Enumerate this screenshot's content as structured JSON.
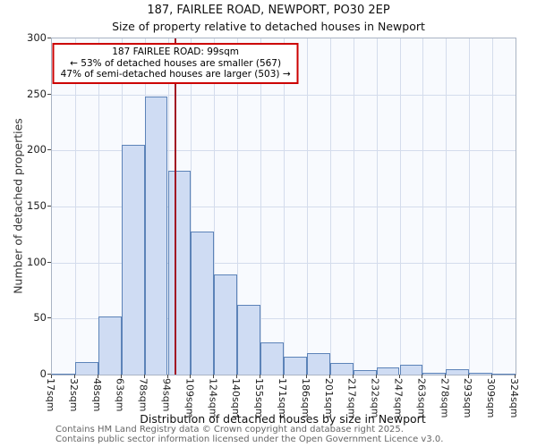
{
  "title": "187, FAIRLEE ROAD, NEWPORT, PO30 2EP",
  "subtitle": "Size of property relative to detached houses in Newport",
  "annotation": {
    "line1": "187 FAIRLEE ROAD: 99sqm",
    "line2": "← 53% of detached houses are smaller (567)",
    "line3": "47% of semi-detached houses are larger (503) →"
  },
  "footer": {
    "line1": "Contains HM Land Registry data © Crown copyright and database right 2025.",
    "line2": "Contains public sector information licensed under the Open Government Licence v3.0."
  },
  "chart_data": {
    "type": "bar",
    "title": "187, FAIRLEE ROAD, NEWPORT, PO30 2EP",
    "subtitle": "Size of property relative to detached houses in Newport",
    "xlabel": "Distribution of detached houses by size in Newport",
    "ylabel": "Number of detached properties",
    "categories": [
      "17sqm",
      "32sqm",
      "48sqm",
      "63sqm",
      "78sqm",
      "94sqm",
      "109sqm",
      "124sqm",
      "140sqm",
      "155sqm",
      "171sqm",
      "186sqm",
      "201sqm",
      "217sqm",
      "232sqm",
      "247sqm",
      "263sqm",
      "278sqm",
      "293sqm",
      "309sqm",
      "324sqm"
    ],
    "values": [
      1,
      11,
      52,
      205,
      248,
      182,
      128,
      89,
      62,
      29,
      16,
      19,
      10,
      4,
      6,
      9,
      2,
      5,
      2,
      1
    ],
    "ylim": [
      0,
      300
    ],
    "yticks": [
      0,
      50,
      100,
      150,
      200,
      250,
      300
    ],
    "grid": true,
    "legend": "none",
    "marker_value_sqm": 99,
    "marker_color": "#a21223",
    "bar_fill": "#cfdcf3",
    "bar_border": "#5c83b8",
    "annotation_border": "#cc0000"
  }
}
